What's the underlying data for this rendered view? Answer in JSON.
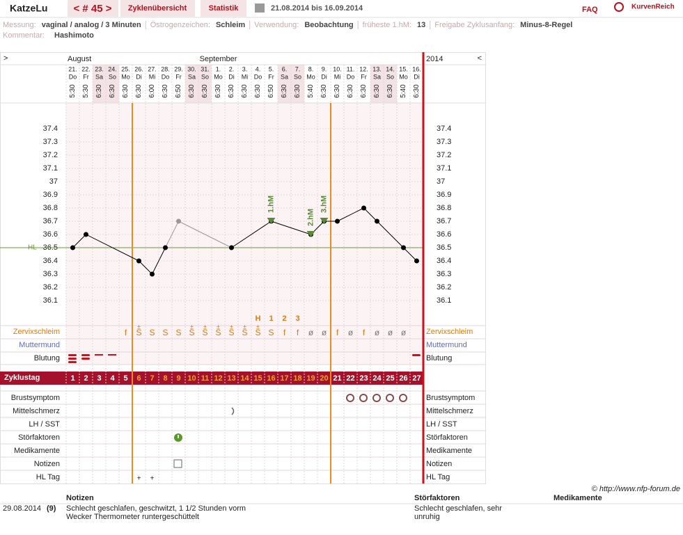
{
  "header": {
    "user": "KatzeLu",
    "cycle_nav": "< # 45 >",
    "tabs": [
      "Zyklenübersicht",
      "Statistik"
    ],
    "date_range": "21.08.2014 bis 16.09.2014",
    "faq": "FAQ",
    "logo": "KurvenReich"
  },
  "info": {
    "items": [
      {
        "label": "Messung:",
        "value": "vaginal / analog / 3 Minuten"
      },
      {
        "label": "Östrogenzeichen:",
        "value": "Schleim"
      },
      {
        "label": "Verwendung:",
        "value": "Beobachtung"
      },
      {
        "label": "früheste 1.hM:",
        "value": "13"
      },
      {
        "label": "Freigabe Zyklusanfang:",
        "value": "Minus-8-Regel"
      }
    ],
    "comment_label": "Kommentar:",
    "comment": "Hashimoto"
  },
  "chart_data": {
    "type": "line",
    "months": [
      "August",
      "September"
    ],
    "year": "2014",
    "nav_left": ">",
    "nav_right": "<",
    "categories": [
      "21.",
      "22.",
      "23.",
      "24.",
      "25.",
      "26.",
      "27.",
      "28.",
      "29.",
      "30.",
      "31.",
      "1.",
      "2.",
      "3.",
      "4.",
      "5.",
      "6.",
      "7.",
      "8.",
      "9.",
      "10.",
      "11.",
      "12.",
      "13.",
      "14.",
      "15.",
      "16."
    ],
    "weekdays": [
      "Do",
      "Fr",
      "Sa",
      "So",
      "Mo",
      "Di",
      "Mi",
      "Do",
      "Fr",
      "Sa",
      "So",
      "Mo",
      "Di",
      "Mi",
      "Do",
      "Fr",
      "Sa",
      "So",
      "Mo",
      "Di",
      "Mi",
      "Do",
      "Fr",
      "Sa",
      "So",
      "Mo",
      "Di"
    ],
    "times": [
      "5:30",
      "5:30",
      "6:30",
      "6:30",
      "6:30",
      "6:30",
      "6:00",
      "6:30",
      "6:50",
      "6:30",
      "6:30",
      "6:30",
      "6:30",
      "6:30",
      "6:30",
      "6:50",
      "6:30",
      "6:30",
      "5:40",
      "6:30",
      "6:30",
      "6:30",
      "6:30",
      "6:30",
      "6:30",
      "5:40",
      "6:30"
    ],
    "values": [
      36.5,
      36.6,
      null,
      null,
      null,
      36.4,
      36.3,
      36.5,
      36.7,
      null,
      null,
      null,
      36.5,
      null,
      null,
      36.7,
      null,
      null,
      36.6,
      36.7,
      36.7,
      null,
      36.8,
      36.7,
      null,
      36.5,
      36.4
    ],
    "point_colors": [
      "#000",
      "#000",
      null,
      null,
      null,
      "#000",
      "#000",
      "#000",
      "#999",
      null,
      null,
      null,
      "#000",
      null,
      null,
      "#000",
      null,
      null,
      "#000",
      "#000",
      "#000",
      null,
      "#000",
      "#000",
      null,
      "#000",
      "#000"
    ],
    "markers": [
      null,
      null,
      null,
      null,
      null,
      null,
      null,
      null,
      null,
      null,
      null,
      null,
      null,
      null,
      null,
      "1.hM",
      null,
      null,
      "2.hM",
      "3.hM",
      null,
      null,
      null,
      null,
      null,
      null,
      null
    ],
    "marker_color": "#5a8a3a",
    "ylim": [
      36.0,
      37.6
    ],
    "yticks": [
      36.1,
      36.2,
      36.3,
      36.4,
      36.5,
      36.6,
      36.7,
      36.8,
      36.9,
      37,
      37.1,
      37.2,
      37.3,
      37.4
    ],
    "cover_line": 36.5,
    "cover_label": "HL",
    "cover_color": "#6a9a3a",
    "peak": [
      null,
      null,
      null,
      null,
      null,
      null,
      null,
      null,
      null,
      null,
      null,
      null,
      null,
      null,
      "H",
      "1",
      "2",
      "3",
      null,
      null,
      null,
      null,
      null,
      null,
      null,
      null,
      null
    ],
    "cervix": [
      null,
      null,
      null,
      null,
      "f",
      "S",
      "S",
      "S",
      "S",
      "S",
      "S",
      "S",
      "S",
      "S",
      "S",
      "S",
      "f",
      "f",
      "ø",
      "ø",
      "f",
      "ø",
      "f",
      "ø",
      "ø",
      "ø",
      null
    ],
    "cervix_super": [
      null,
      null,
      null,
      null,
      null,
      "±",
      null,
      null,
      null,
      "±",
      "±",
      "±",
      "±",
      "±",
      "±",
      null,
      null,
      null,
      null,
      null,
      null,
      null,
      null,
      null,
      null,
      null,
      null
    ],
    "cycle_days": [
      1,
      2,
      3,
      4,
      5,
      6,
      7,
      8,
      9,
      10,
      11,
      12,
      13,
      14,
      15,
      16,
      17,
      18,
      19,
      20,
      21,
      22,
      23,
      24,
      25,
      26,
      27
    ],
    "hl_day": [
      null,
      null,
      null,
      null,
      null,
      "+",
      "+",
      null,
      null,
      null,
      null,
      null,
      null,
      null,
      null,
      null,
      null,
      null,
      null,
      null,
      null,
      null,
      null,
      null,
      null,
      null,
      null
    ],
    "rows": [
      "Zervixschleim",
      "Muttermund",
      "Blutung",
      "Zyklustag",
      "Brustsymptom",
      "Mittelschmerz",
      "LH / SST",
      "Störfaktoren",
      "Medikamente",
      "Notizen",
      "HL Tag"
    ]
  },
  "footer": {
    "copyright": "© http://www.nfp-forum.de",
    "columns": [
      "Notizen",
      "Störfaktoren",
      "Medikamente"
    ],
    "entry": {
      "date": "29.08.2014",
      "day": "(9)",
      "note_lines": [
        "Schlecht geschlafen, geschwitzt, 1 1/2 Stunden vorm",
        "Wecker Thermometer runtergeschüttelt"
      ],
      "disturbance_lines": [
        "Schlecht geschlafen, sehr",
        "unruhig"
      ]
    }
  }
}
